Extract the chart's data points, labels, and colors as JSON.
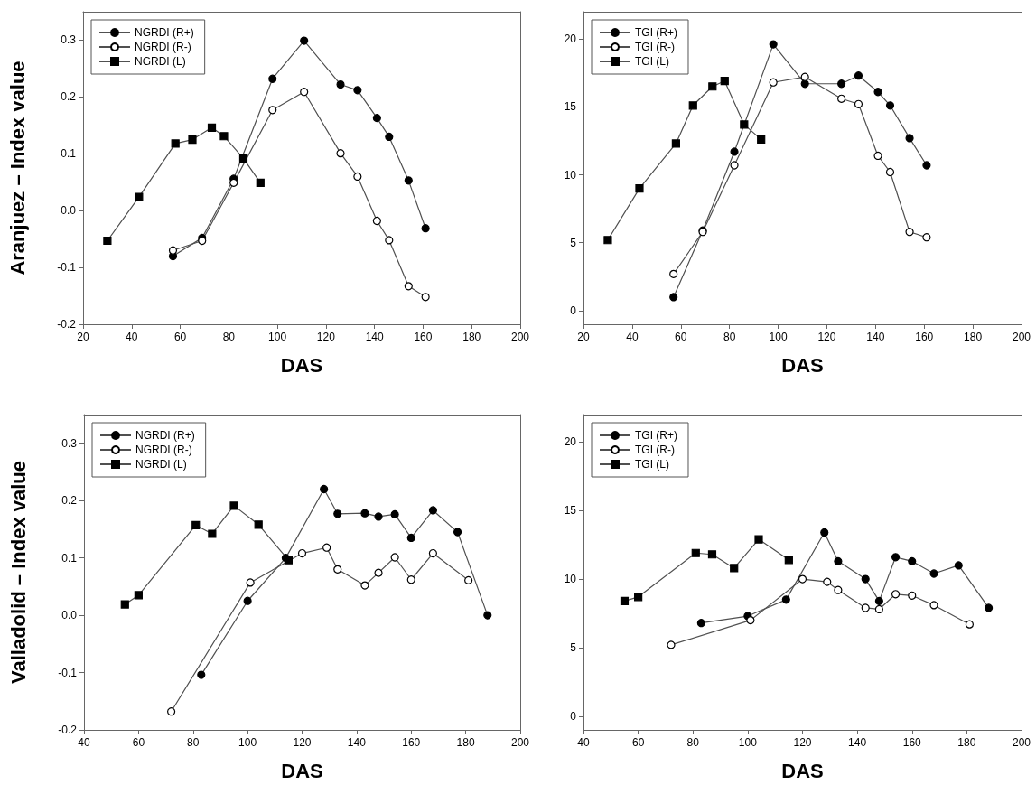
{
  "chart_data": [
    {
      "type": "line",
      "ylabel": "Aranjuez – Index value",
      "xlabel": "DAS",
      "xlim": [
        20,
        200
      ],
      "xticks": [
        20,
        40,
        60,
        80,
        100,
        120,
        140,
        160,
        180,
        200
      ],
      "ylim": [
        -0.2,
        0.35
      ],
      "yticks": [
        -0.2,
        -0.1,
        {
          "value": 0,
          "label": "0.0"
        },
        0.1,
        0.2,
        0.3
      ],
      "grid": false,
      "legend": "top left",
      "series": [
        {
          "name": "NGRDI (R+)",
          "color": "#000000",
          "marker": "circle",
          "x": [
            57,
            69,
            82,
            98,
            111,
            126,
            133,
            141,
            146,
            154,
            161
          ],
          "values": [
            -0.08,
            -0.048,
            0.056,
            0.232,
            0.299,
            0.222,
            0.212,
            0.163,
            0.13,
            0.053,
            -0.031
          ]
        },
        {
          "name": "NGRDI (R-)",
          "color": "#ffffff",
          "marker": "circle",
          "x": [
            57,
            69,
            82,
            98,
            111,
            126,
            133,
            141,
            146,
            154,
            161
          ],
          "values": [
            -0.07,
            -0.053,
            0.049,
            0.177,
            0.209,
            0.101,
            0.06,
            -0.018,
            -0.052,
            -0.133,
            -0.152
          ]
        },
        {
          "name": "NGRDI (L)",
          "color": "#000000",
          "marker": "square",
          "x": [
            30,
            43,
            58,
            65,
            73,
            78,
            86,
            93
          ],
          "values": [
            -0.053,
            0.024,
            0.118,
            0.125,
            0.146,
            0.131,
            0.092,
            0.049
          ]
        }
      ]
    },
    {
      "type": "line",
      "xlabel": "DAS",
      "xlim": [
        20,
        200
      ],
      "xticks": [
        20,
        40,
        60,
        80,
        100,
        120,
        140,
        160,
        180,
        200
      ],
      "ylim": [
        -1,
        22
      ],
      "yticks": [
        0,
        5,
        10,
        15,
        20
      ],
      "grid": false,
      "legend": "top left",
      "series": [
        {
          "name": "TGI (R+)",
          "color": "#000000",
          "marker": "circle",
          "x": [
            57,
            69,
            82,
            98,
            111,
            126,
            133,
            141,
            146,
            154,
            161
          ],
          "values": [
            1.0,
            5.9,
            11.7,
            19.6,
            16.7,
            16.7,
            17.3,
            16.1,
            15.1,
            12.7,
            10.7
          ]
        },
        {
          "name": "TGI (R-)",
          "color": "#ffffff",
          "marker": "circle",
          "x": [
            57,
            69,
            82,
            98,
            111,
            126,
            133,
            141,
            146,
            154,
            161
          ],
          "values": [
            2.7,
            5.8,
            10.7,
            16.8,
            17.2,
            15.6,
            15.2,
            11.4,
            10.2,
            5.8,
            5.4
          ]
        },
        {
          "name": "TGI (L)",
          "color": "#000000",
          "marker": "square",
          "x": [
            30,
            43,
            58,
            65,
            73,
            78,
            86,
            93
          ],
          "values": [
            5.2,
            9.0,
            12.3,
            15.1,
            16.5,
            16.9,
            13.7,
            12.6
          ]
        }
      ]
    },
    {
      "type": "line",
      "ylabel": "Valladolid – Index value",
      "xlabel": "DAS",
      "xlim": [
        40,
        200
      ],
      "xticks": [
        40,
        60,
        80,
        100,
        120,
        140,
        160,
        180,
        200
      ],
      "ylim": [
        -0.2,
        0.35
      ],
      "yticks": [
        -0.2,
        -0.1,
        {
          "value": 0,
          "label": "0.0"
        },
        0.1,
        0.2,
        0.3
      ],
      "grid": false,
      "legend": "top left",
      "series": [
        {
          "name": "NGRDI (R+)",
          "color": "#000000",
          "marker": "circle",
          "x": [
            83,
            100,
            114,
            128,
            133,
            143,
            148,
            154,
            160,
            168,
            177,
            188
          ],
          "values": [
            -0.104,
            0.025,
            0.1,
            0.22,
            0.177,
            0.178,
            0.172,
            0.176,
            0.135,
            0.183,
            0.145,
            0.0
          ]
        },
        {
          "name": "NGRDI (R-)",
          "color": "#ffffff",
          "marker": "circle",
          "x": [
            72,
            101,
            120,
            129,
            133,
            143,
            148,
            154,
            160,
            168,
            181
          ],
          "values": [
            -0.168,
            0.057,
            0.108,
            0.118,
            0.08,
            0.052,
            0.074,
            0.101,
            0.062,
            0.108,
            0.061
          ]
        },
        {
          "name": "NGRDI (L)",
          "color": "#000000",
          "marker": "square",
          "x": [
            55,
            60,
            81,
            87,
            95,
            104,
            115
          ],
          "values": [
            0.019,
            0.035,
            0.157,
            0.142,
            0.191,
            0.158,
            0.096
          ]
        }
      ]
    },
    {
      "type": "line",
      "xlabel": "DAS",
      "xlim": [
        40,
        200
      ],
      "xticks": [
        40,
        60,
        80,
        100,
        120,
        140,
        160,
        180,
        200
      ],
      "ylim": [
        -1,
        22
      ],
      "yticks": [
        0,
        5,
        10,
        15,
        20
      ],
      "grid": false,
      "legend": "top left",
      "series": [
        {
          "name": "TGI (R+)",
          "color": "#000000",
          "marker": "circle",
          "x": [
            83,
            100,
            114,
            128,
            133,
            143,
            148,
            154,
            160,
            168,
            177,
            188
          ],
          "values": [
            6.8,
            7.3,
            8.5,
            13.4,
            11.3,
            10.0,
            8.4,
            11.6,
            11.3,
            10.4,
            11.0,
            7.9
          ]
        },
        {
          "name": "TGI (R-)",
          "color": "#ffffff",
          "marker": "circle",
          "x": [
            72,
            101,
            120,
            129,
            133,
            143,
            148,
            154,
            160,
            168,
            181
          ],
          "values": [
            5.2,
            7.0,
            10.0,
            9.8,
            9.2,
            7.9,
            7.8,
            8.9,
            8.8,
            8.1,
            6.7
          ]
        },
        {
          "name": "TGI (L)",
          "color": "#000000",
          "marker": "square",
          "x": [
            55,
            60,
            81,
            87,
            95,
            104,
            115
          ],
          "values": [
            8.4,
            8.7,
            11.9,
            11.8,
            10.8,
            12.9,
            11.4
          ]
        }
      ]
    }
  ]
}
